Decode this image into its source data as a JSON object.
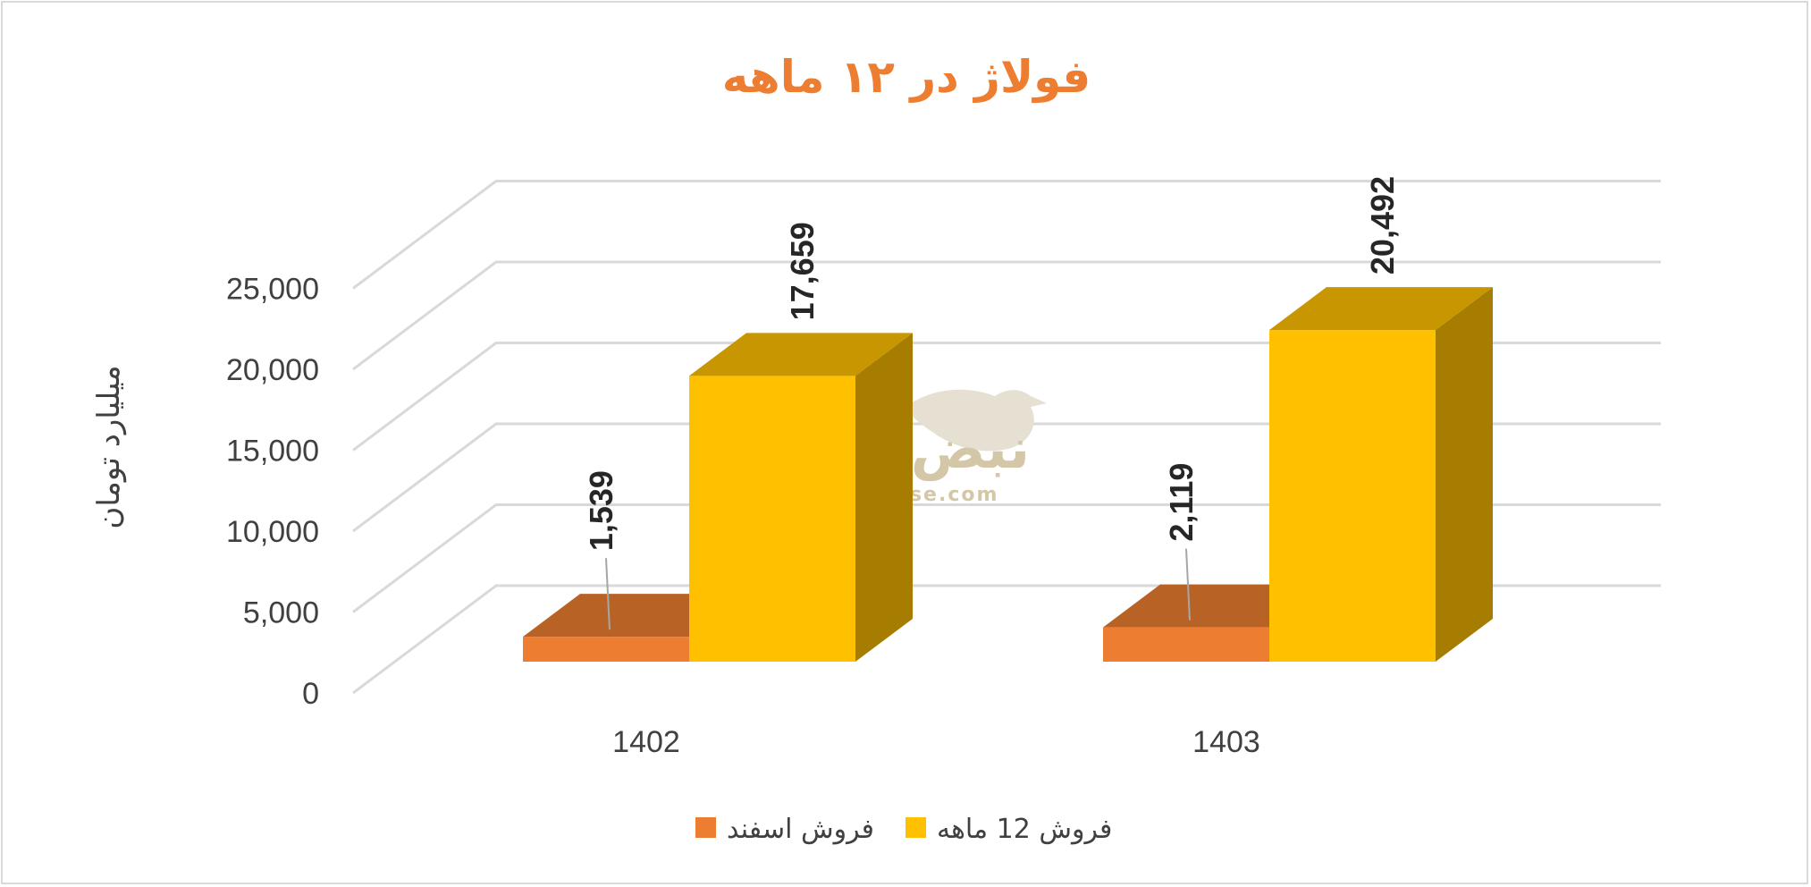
{
  "chart_data": {
    "type": "bar",
    "title": "فولاژ در ۱۲ ماهه",
    "ylabel": "میلیارد تومان",
    "xlabel": "",
    "ylim": [
      0,
      25000
    ],
    "yticks": [
      0,
      5000,
      10000,
      15000,
      20000,
      25000
    ],
    "ytick_labels": [
      "0",
      "5,000",
      "10,000",
      "15,000",
      "20,000",
      "25,000"
    ],
    "categories": [
      "1402",
      "1403"
    ],
    "series": [
      {
        "name": "فروش اسفند",
        "values": [
          1539,
          2119
        ],
        "labels": [
          "1,539",
          "2,119"
        ],
        "color": "#ed7d31"
      },
      {
        "name": "فروش 12  ماهه",
        "values": [
          17659,
          20492
        ],
        "labels": [
          "17,659",
          "20,492"
        ],
        "color": "#ffc000"
      }
    ],
    "grid": true,
    "legend_position": "bottom",
    "style": "3d-clustered-column"
  },
  "watermark": {
    "brand": "نبض بورس",
    "site": "nabzebourse.com"
  }
}
